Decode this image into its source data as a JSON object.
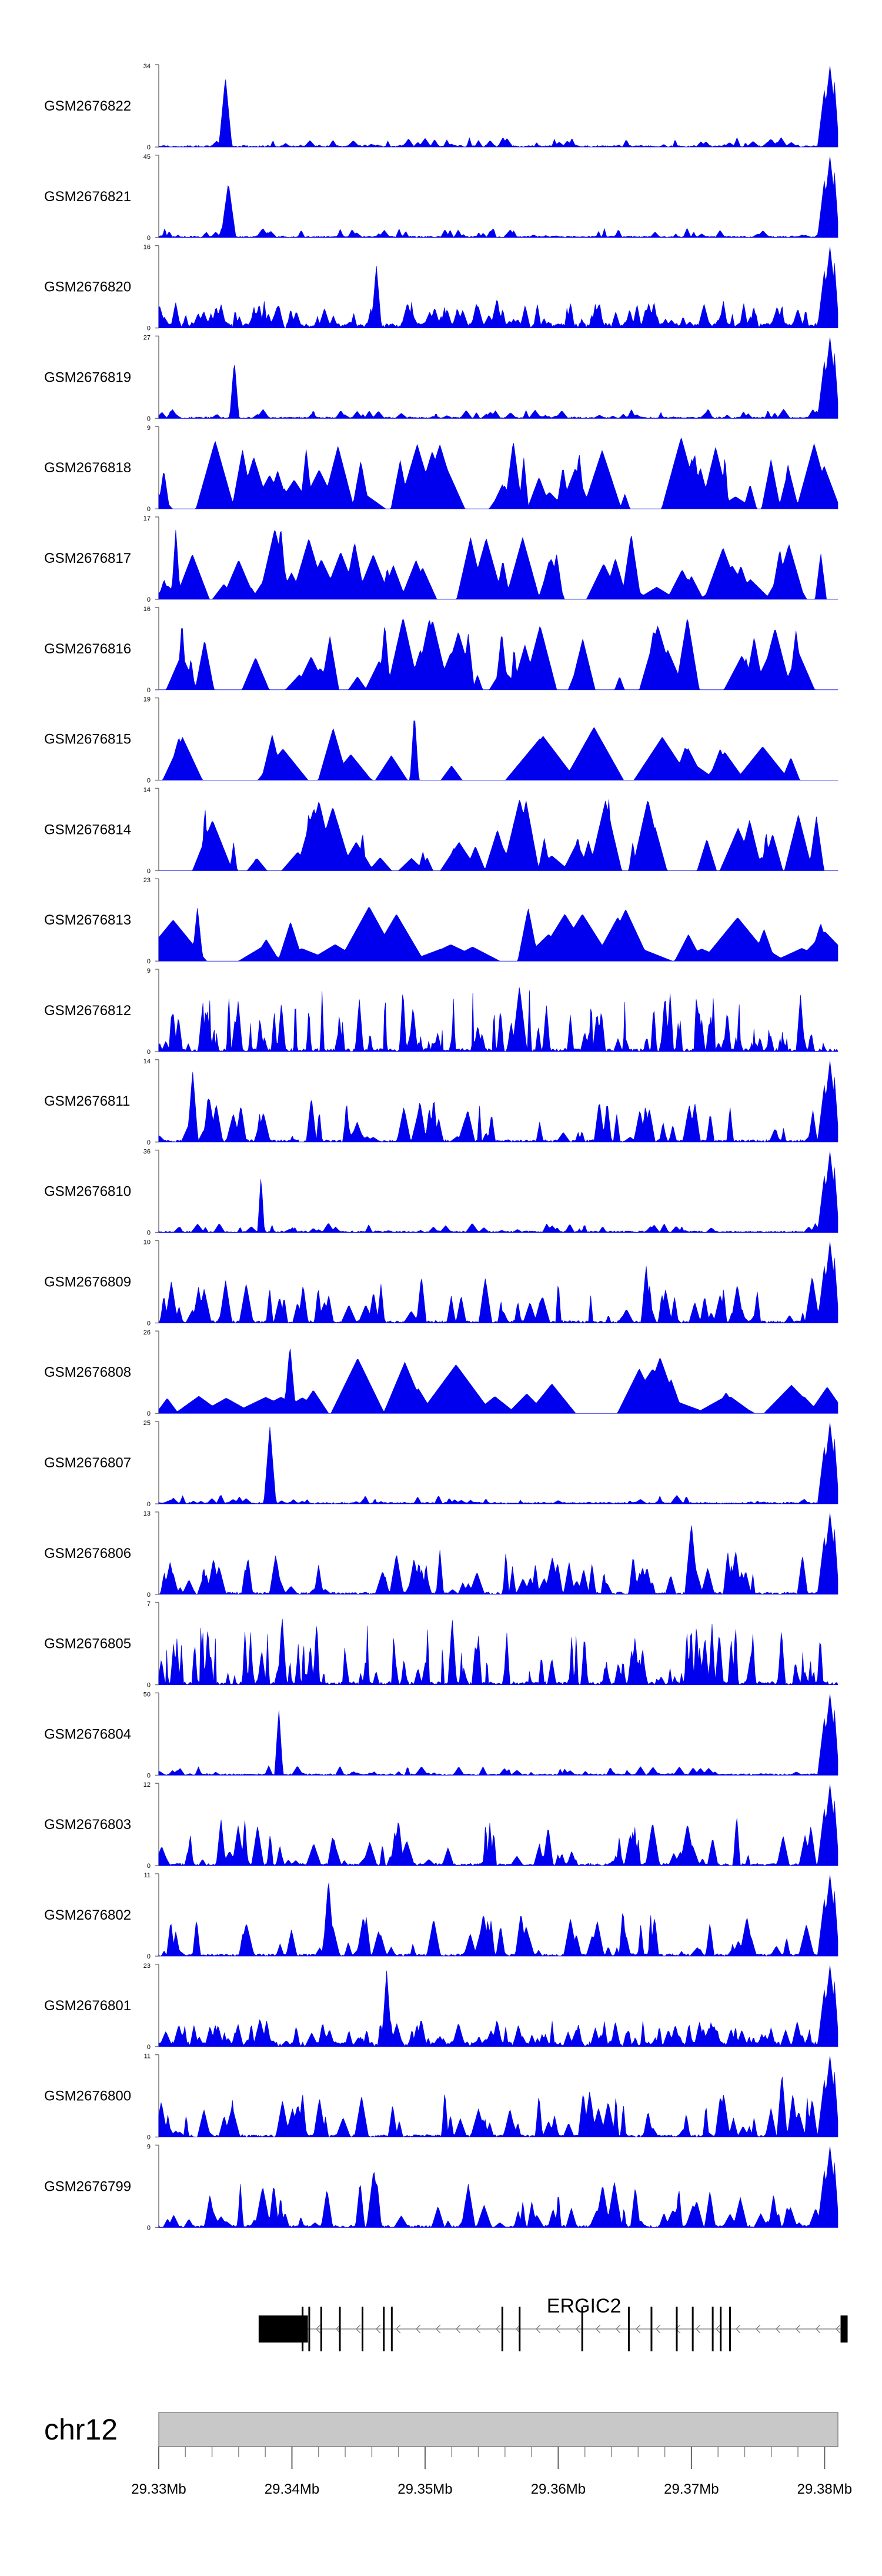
{
  "chart_data": {
    "type": "area",
    "title": "",
    "color": "#0000ee",
    "chromosome": "chr12",
    "gene": {
      "name": "ERGIC2",
      "strand": "-",
      "start": 29.3375,
      "end": 29.3815
    },
    "gene_exons": [
      29.3375,
      29.3408,
      29.3413,
      29.3422,
      29.3436,
      29.3453,
      29.3469,
      29.3475,
      29.3558,
      29.3571,
      29.3618,
      29.3653,
      29.367,
      29.3689,
      29.3701,
      29.3716,
      29.3722,
      29.3729,
      29.3812
    ],
    "xlim": [
      29.33,
      29.381
    ],
    "x_ticks": [
      29.33,
      29.34,
      29.35,
      29.36,
      29.37,
      29.38
    ],
    "x_tick_labels": [
      "29.33Mb",
      "29.34Mb",
      "29.35Mb",
      "29.36Mb",
      "29.37Mb",
      "29.38Mb"
    ],
    "tracks": [
      {
        "name": "GSM2676822",
        "ymax": "34",
        "ymin": "0",
        "max": 34,
        "style": "tss",
        "seed": 11
      },
      {
        "name": "GSM2676821",
        "ymax": "45",
        "ymin": "0",
        "max": 45,
        "style": "tss",
        "seed": 12
      },
      {
        "name": "GSM2676820",
        "ymax": "16",
        "ymin": "0",
        "max": 16,
        "style": "dense",
        "seed": 13
      },
      {
        "name": "GSM2676819",
        "ymax": "27",
        "ymin": "0",
        "max": 27,
        "style": "tss",
        "seed": 14
      },
      {
        "name": "GSM2676818",
        "ymax": "9",
        "ymin": "0",
        "max": 9,
        "style": "sparse",
        "seed": 15
      },
      {
        "name": "GSM2676817",
        "ymax": "17",
        "ymin": "0",
        "max": 17,
        "style": "sparse",
        "seed": 16
      },
      {
        "name": "GSM2676816",
        "ymax": "16",
        "ymin": "0",
        "max": 16,
        "style": "sparse",
        "seed": 17
      },
      {
        "name": "GSM2676815",
        "ymax": "19",
        "ymin": "0",
        "max": 19,
        "style": "vsparse",
        "seed": 18
      },
      {
        "name": "GSM2676814",
        "ymax": "14",
        "ymin": "0",
        "max": 14,
        "style": "sparse",
        "seed": 19
      },
      {
        "name": "GSM2676813",
        "ymax": "23",
        "ymin": "0",
        "max": 23,
        "style": "vsparse",
        "seed": 20
      },
      {
        "name": "GSM2676812",
        "ymax": "9",
        "ymin": "0",
        "max": 9,
        "style": "spiky",
        "seed": 21
      },
      {
        "name": "GSM2676811",
        "ymax": "14",
        "ymin": "0",
        "max": 14,
        "style": "peaks",
        "seed": 22
      },
      {
        "name": "GSM2676810",
        "ymax": "36",
        "ymin": "0",
        "max": 36,
        "style": "tss",
        "seed": 23
      },
      {
        "name": "GSM2676809",
        "ymax": "10",
        "ymin": "0",
        "max": 10,
        "style": "peaks",
        "seed": 24
      },
      {
        "name": "GSM2676808",
        "ymax": "26",
        "ymin": "0",
        "max": 26,
        "style": "vsparse",
        "seed": 25
      },
      {
        "name": "GSM2676807",
        "ymax": "25",
        "ymin": "0",
        "max": 25,
        "style": "tss",
        "seed": 26
      },
      {
        "name": "GSM2676806",
        "ymax": "13",
        "ymin": "0",
        "max": 13,
        "style": "peaks",
        "seed": 27
      },
      {
        "name": "GSM2676805",
        "ymax": "7",
        "ymin": "0",
        "max": 7,
        "style": "spiky",
        "seed": 28
      },
      {
        "name": "GSM2676804",
        "ymax": "50",
        "ymin": "0",
        "max": 50,
        "style": "tss",
        "seed": 29
      },
      {
        "name": "GSM2676803",
        "ymax": "12",
        "ymin": "0",
        "max": 12,
        "style": "peaks",
        "seed": 30
      },
      {
        "name": "GSM2676802",
        "ymax": "11",
        "ymin": "0",
        "max": 11,
        "style": "peaks",
        "seed": 31
      },
      {
        "name": "GSM2676801",
        "ymax": "23",
        "ymin": "0",
        "max": 23,
        "style": "dense",
        "seed": 32
      },
      {
        "name": "GSM2676800",
        "ymax": "11",
        "ymin": "0",
        "max": 11,
        "style": "peaks",
        "seed": 33
      },
      {
        "name": "GSM2676799",
        "ymax": "9",
        "ymin": "0",
        "max": 9,
        "style": "peaks",
        "seed": 34
      }
    ]
  }
}
